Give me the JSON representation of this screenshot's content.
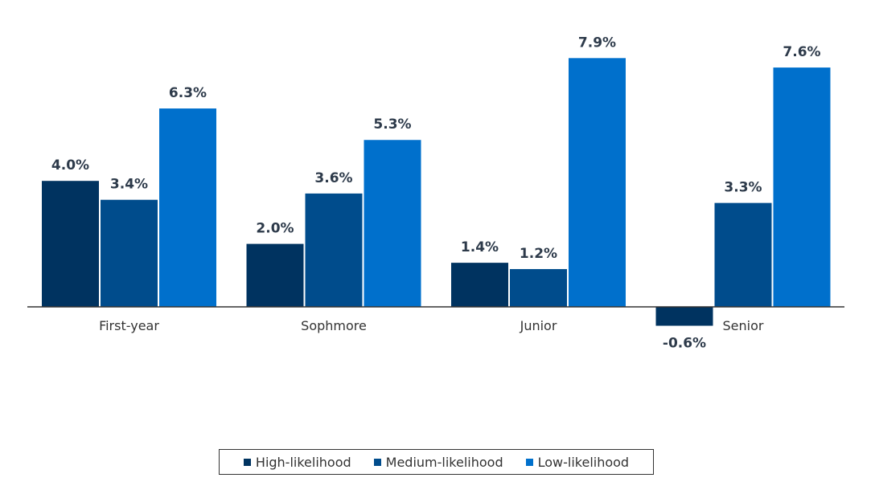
{
  "chart_data": {
    "type": "bar",
    "categories": [
      "First-year",
      "Sophmore",
      "Junior",
      "Senior"
    ],
    "series": [
      {
        "name": "High-likelihood",
        "color": "#003360",
        "values": [
          4.0,
          2.0,
          1.4,
          -0.6
        ],
        "labels": [
          "4.0%",
          "2.0%",
          "1.4%",
          "-0.6%"
        ]
      },
      {
        "name": "Medium-likelihood",
        "color": "#004c8c",
        "values": [
          3.4,
          3.6,
          1.2,
          3.3
        ],
        "labels": [
          "3.4%",
          "3.6%",
          "1.2%",
          "3.3%"
        ]
      },
      {
        "name": "Low-likelihood",
        "color": "#0070cc",
        "values": [
          6.3,
          5.3,
          7.9,
          7.6
        ],
        "labels": [
          "6.3%",
          "5.3%",
          "7.9%",
          "7.6%"
        ]
      }
    ],
    "value_format": "percent",
    "axis_line_color": "#333333",
    "legend_position": "bottom",
    "grid": false
  }
}
